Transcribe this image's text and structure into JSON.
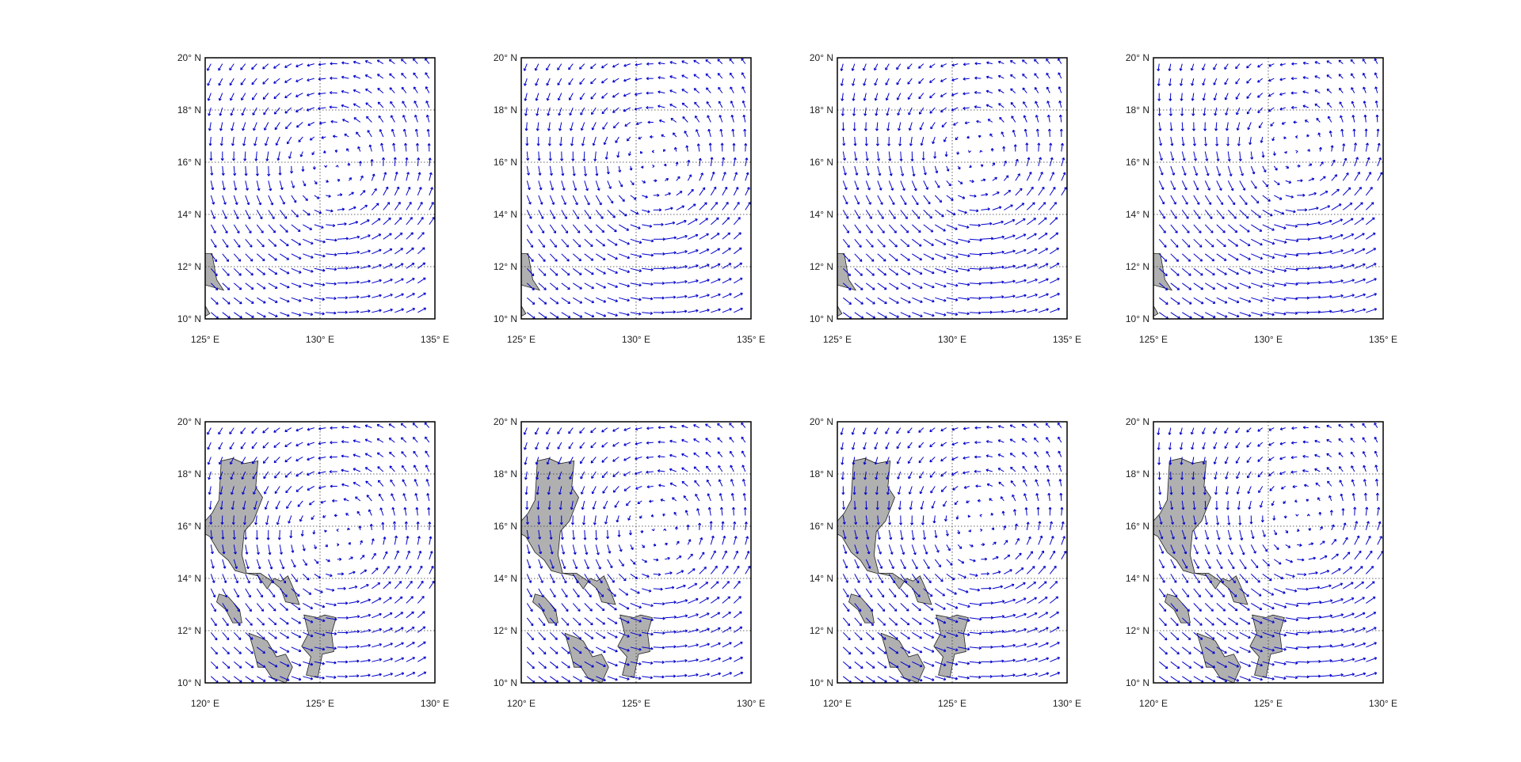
{
  "chart_data": [
    {
      "type": "quiver",
      "region": "top",
      "xlim": [
        125,
        135
      ],
      "ylim": [
        10,
        20
      ],
      "x_ticks": [
        125,
        130,
        135
      ],
      "y_ticks": [
        10,
        12,
        14,
        16,
        18,
        20
      ],
      "x_tick_labels": [
        "125° E",
        "130° E",
        "135° E"
      ],
      "y_tick_labels": [
        "10° N",
        "12° N",
        "14° N",
        "16° N",
        "18° N",
        "20° N"
      ],
      "grid": true,
      "arrow_color": "#0000cc",
      "land_color": "#b0b0b0",
      "land": [
        [
          [
            125,
            12.5
          ],
          [
            125.3,
            12.5
          ],
          [
            125.5,
            11.5
          ],
          [
            125.8,
            11.1
          ],
          [
            125.4,
            11.2
          ],
          [
            125,
            11.3
          ]
        ],
        [
          [
            125,
            10.5
          ],
          [
            125.2,
            10.2
          ],
          [
            125,
            10.1
          ]
        ]
      ],
      "vortex_center": [
        130.4,
        15.5
      ]
    },
    {
      "type": "quiver",
      "region": "bottom",
      "xlim": [
        120,
        130
      ],
      "ylim": [
        10,
        20
      ],
      "x_ticks": [
        120,
        125,
        130
      ],
      "y_ticks": [
        10,
        12,
        14,
        16,
        18,
        20
      ],
      "x_tick_labels": [
        "120° E",
        "125° E",
        "130° E"
      ],
      "y_tick_labels": [
        "10° N",
        "12° N",
        "14° N",
        "16° N",
        "18° N",
        "20° N"
      ],
      "grid": true,
      "arrow_color": "#0000cc",
      "land_color": "#b0b0b0",
      "land": [
        [
          [
            120,
            16.2
          ],
          [
            120.3,
            16.5
          ],
          [
            120.6,
            17.0
          ],
          [
            120.7,
            18.5
          ],
          [
            121.2,
            18.6
          ],
          [
            121.7,
            18.4
          ],
          [
            122.3,
            18.5
          ],
          [
            122.2,
            17.5
          ],
          [
            122.5,
            17.1
          ],
          [
            122.1,
            16.2
          ],
          [
            121.7,
            15.8
          ],
          [
            121.6,
            14.9
          ],
          [
            121.8,
            14.2
          ],
          [
            122.3,
            14.1
          ],
          [
            122.7,
            13.6
          ],
          [
            123.0,
            14.0
          ],
          [
            123.3,
            13.9
          ],
          [
            123.6,
            14.1
          ],
          [
            123.9,
            13.5
          ],
          [
            124.1,
            13.0
          ],
          [
            123.5,
            13.1
          ],
          [
            123.3,
            13.6
          ],
          [
            122.9,
            13.9
          ],
          [
            122.4,
            14.2
          ],
          [
            121.7,
            14.2
          ],
          [
            121.3,
            14.3
          ],
          [
            121.0,
            14.7
          ],
          [
            120.6,
            15.0
          ],
          [
            120.2,
            15.6
          ],
          [
            120.0,
            15.7
          ]
        ],
        [
          [
            120.6,
            13.4
          ],
          [
            121.0,
            13.3
          ],
          [
            121.5,
            12.8
          ],
          [
            121.6,
            12.3
          ],
          [
            121.2,
            12.3
          ],
          [
            120.9,
            12.8
          ],
          [
            120.5,
            13.1
          ]
        ],
        [
          [
            121.9,
            11.9
          ],
          [
            122.5,
            11.7
          ],
          [
            122.7,
            11.6
          ],
          [
            123.1,
            11.0
          ],
          [
            123.5,
            11.1
          ],
          [
            123.8,
            10.6
          ],
          [
            123.5,
            10.0
          ],
          [
            122.9,
            10.2
          ],
          [
            122.6,
            10.6
          ],
          [
            122.3,
            10.6
          ],
          [
            122.1,
            11.3
          ]
        ],
        [
          [
            124.3,
            12.6
          ],
          [
            124.9,
            12.5
          ],
          [
            125.2,
            12.6
          ],
          [
            125.7,
            12.5
          ],
          [
            125.5,
            11.9
          ],
          [
            125.6,
            11.2
          ],
          [
            125.1,
            11.1
          ],
          [
            124.9,
            10.2
          ],
          [
            124.4,
            10.3
          ],
          [
            124.6,
            11.0
          ],
          [
            124.2,
            11.4
          ],
          [
            124.5,
            11.9
          ]
        ]
      ],
      "vortex_center": [
        125.6,
        15.3
      ]
    }
  ]
}
